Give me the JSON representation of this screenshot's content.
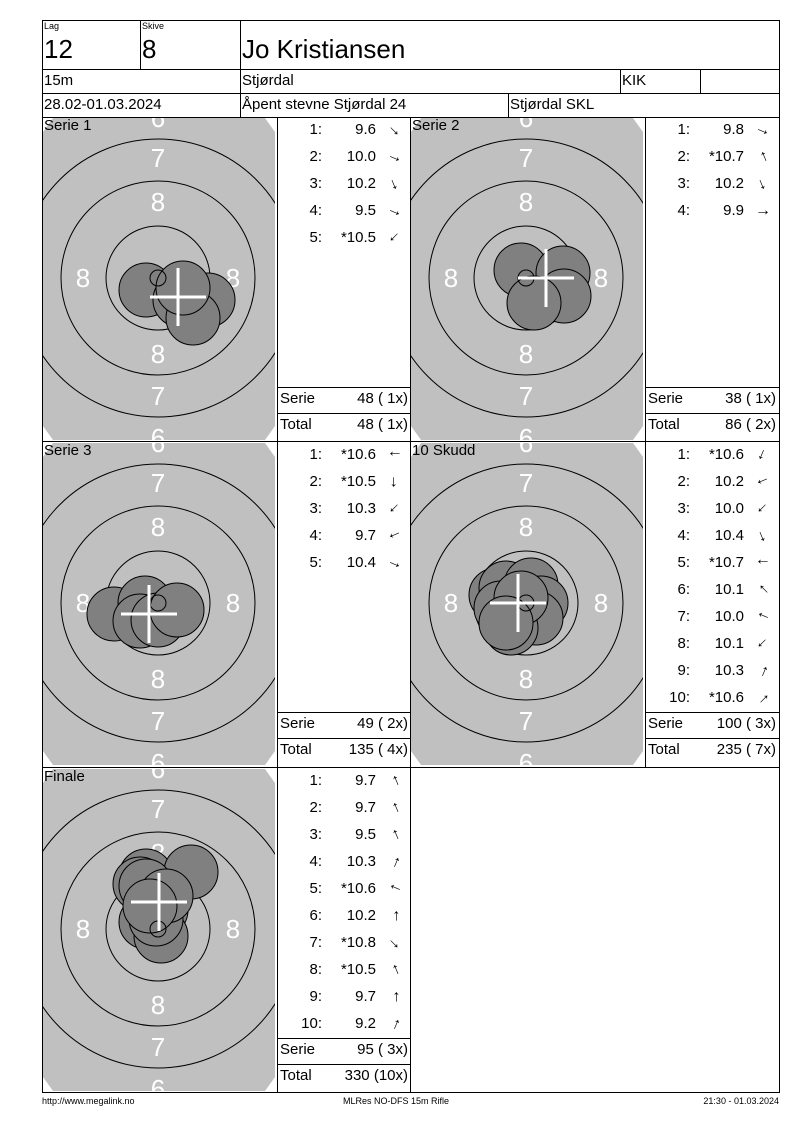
{
  "header": {
    "lag_label": "Lag",
    "lag_value": "12",
    "skive_label": "Skive",
    "skive_value": "8",
    "name": "Jo Kristiansen",
    "distance": "15m",
    "location": "Stjørdal",
    "club_code": "KIK",
    "extra": "",
    "date": "28.02-01.03.2024",
    "event": "Åpent stevne Stjørdal 24",
    "organizer": "Stjørdal SKL"
  },
  "colors": {
    "target_bg": "#c0c0c0",
    "shot_fill": "#808080",
    "ring_label": "#ffffff"
  },
  "target_labels": {
    "ring6": "6",
    "ring7": "7",
    "ring8": "8"
  },
  "sum_labels": {
    "serie": "Serie",
    "total": "Total"
  },
  "panels": [
    {
      "title": "Serie 1",
      "shots": [
        {
          "n": "1:",
          "score": "9.6",
          "dir": "SE"
        },
        {
          "n": "2:",
          "score": "10.0",
          "dir": "ESE"
        },
        {
          "n": "3:",
          "score": "10.2",
          "dir": "SSE"
        },
        {
          "n": "4:",
          "score": "9.5",
          "dir": "ESE"
        },
        {
          "n": "5:",
          "score": "*10.5",
          "dir": "SW"
        }
      ],
      "serie": "48 ( 1x)",
      "total": "48 ( 1x)"
    },
    {
      "title": "Serie 2",
      "shots": [
        {
          "n": "1:",
          "score": "9.8",
          "dir": "ESE"
        },
        {
          "n": "2:",
          "score": "*10.7",
          "dir": "NNW"
        },
        {
          "n": "3:",
          "score": "10.2",
          "dir": "SSE"
        },
        {
          "n": "4:",
          "score": "9.9",
          "dir": "E"
        }
      ],
      "serie": "38 ( 1x)",
      "total": "86 ( 2x)"
    },
    {
      "title": "Serie 3",
      "shots": [
        {
          "n": "1:",
          "score": "*10.6",
          "dir": "W"
        },
        {
          "n": "2:",
          "score": "*10.5",
          "dir": "S"
        },
        {
          "n": "3:",
          "score": "10.3",
          "dir": "SW"
        },
        {
          "n": "4:",
          "score": "9.7",
          "dir": "WSW"
        },
        {
          "n": "5:",
          "score": "10.4",
          "dir": "ESE"
        }
      ],
      "serie": "49 ( 2x)",
      "total": "135 ( 4x)"
    },
    {
      "title": "10 Skudd",
      "shots": [
        {
          "n": "1:",
          "score": "*10.6",
          "dir": "SSW"
        },
        {
          "n": "2:",
          "score": "10.2",
          "dir": "WSW"
        },
        {
          "n": "3:",
          "score": "10.0",
          "dir": "SW"
        },
        {
          "n": "4:",
          "score": "10.4",
          "dir": "SSE"
        },
        {
          "n": "5:",
          "score": "*10.7",
          "dir": "W"
        },
        {
          "n": "6:",
          "score": "10.1",
          "dir": "NW"
        },
        {
          "n": "7:",
          "score": "10.0",
          "dir": "WNW"
        },
        {
          "n": "8:",
          "score": "10.1",
          "dir": "SW"
        },
        {
          "n": "9:",
          "score": "10.3",
          "dir": "NNE"
        },
        {
          "n": "10:",
          "score": "*10.6",
          "dir": "NE"
        }
      ],
      "serie": "100 ( 3x)",
      "total": "235 ( 7x)"
    },
    {
      "title": "Finale",
      "shots": [
        {
          "n": "1:",
          "score": "9.7",
          "dir": "NNW"
        },
        {
          "n": "2:",
          "score": "9.7",
          "dir": "NNW"
        },
        {
          "n": "3:",
          "score": "9.5",
          "dir": "NNW"
        },
        {
          "n": "4:",
          "score": "10.3",
          "dir": "NNE"
        },
        {
          "n": "5:",
          "score": "*10.6",
          "dir": "WNW"
        },
        {
          "n": "6:",
          "score": "10.2",
          "dir": "N"
        },
        {
          "n": "7:",
          "score": "*10.8",
          "dir": "SE"
        },
        {
          "n": "8:",
          "score": "*10.5",
          "dir": "NNW"
        },
        {
          "n": "9:",
          "score": "9.7",
          "dir": "N"
        },
        {
          "n": "10:",
          "score": "9.2",
          "dir": "NNE"
        }
      ],
      "serie": "95 ( 3x)",
      "total": "330 (10x)"
    }
  ],
  "footer": {
    "url": "http://www.megalink.no",
    "program": "MLRes NO-DFS 15m Rifle",
    "timestamp": "21:30 - 01.03.2024"
  }
}
